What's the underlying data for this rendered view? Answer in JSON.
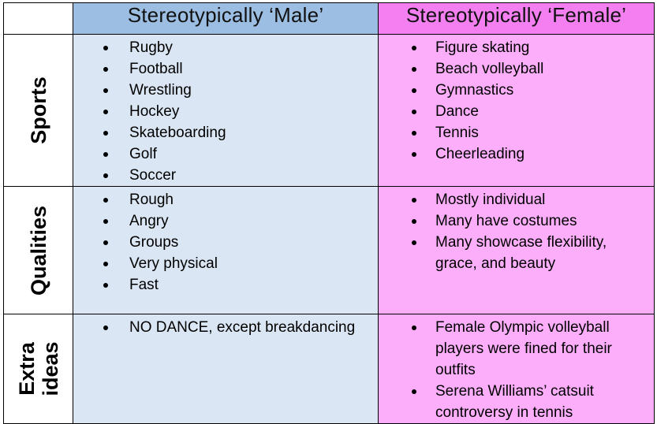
{
  "header": {
    "male": "Stereotypically ‘Male’",
    "female": "Stereotypically ‘Female’"
  },
  "rows": [
    {
      "label_lines": [
        "Sports"
      ],
      "male": [
        "Rugby",
        "Football",
        "Wrestling",
        "Hockey",
        "Skateboarding",
        "Golf",
        "Soccer"
      ],
      "female": [
        "Figure skating",
        "Beach volleyball",
        "Gymnastics",
        "Dance",
        "Tennis",
        "Cheerleading"
      ]
    },
    {
      "label_lines": [
        "Qualities"
      ],
      "male": [
        "Rough",
        "Angry",
        "Groups",
        "Very physical",
        "Fast"
      ],
      "female": [
        "Mostly individual",
        "Many have costumes",
        "Many showcase flexibility, grace, and beauty"
      ]
    },
    {
      "label_lines": [
        "Extra",
        "ideas"
      ],
      "male": [
        "NO DANCE, except breakdancing"
      ],
      "female": [
        "Female Olympic volleyball players were fined for their outfits",
        "Serena Williams’ catsuit controversy in tennis"
      ]
    }
  ],
  "colors": {
    "male_header": "#9bbee2",
    "female_header": "#f37ff0",
    "male_cell": "#dae6f3",
    "female_cell": "#fcaefa"
  }
}
